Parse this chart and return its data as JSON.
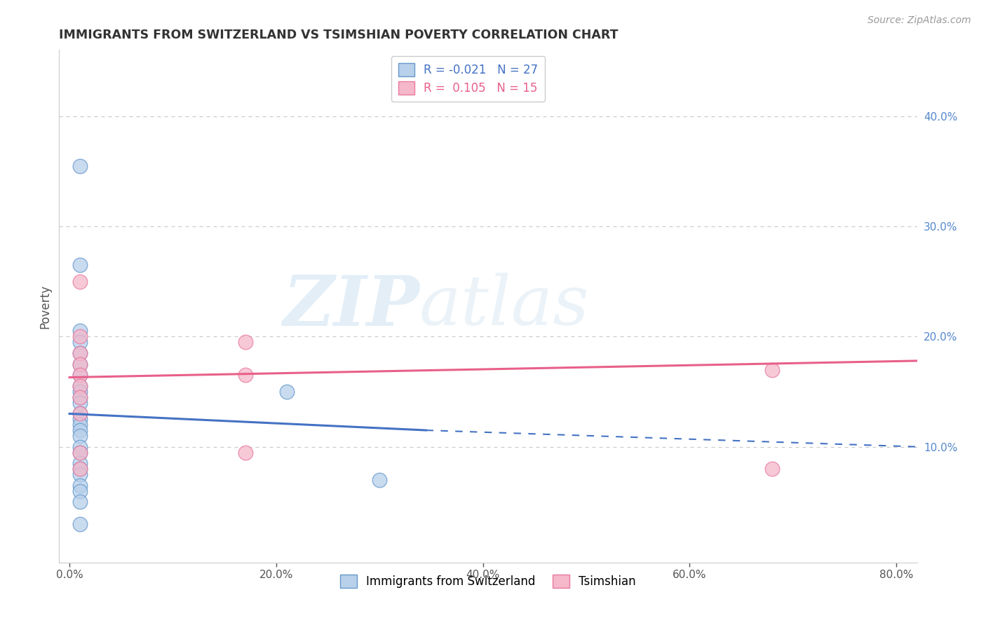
{
  "title": "IMMIGRANTS FROM SWITZERLAND VS TSIMSHIAN POVERTY CORRELATION CHART",
  "source": "Source: ZipAtlas.com",
  "ylabel": "Poverty",
  "watermark_zip": "ZIP",
  "watermark_atlas": "atlas",
  "x_ticks": [
    "0.0%",
    "20.0%",
    "40.0%",
    "60.0%",
    "80.0%"
  ],
  "x_tick_vals": [
    0.0,
    0.2,
    0.4,
    0.6,
    0.8
  ],
  "y_ticks_right": [
    "10.0%",
    "20.0%",
    "30.0%",
    "40.0%"
  ],
  "y_tick_right_vals": [
    0.1,
    0.2,
    0.3,
    0.4
  ],
  "xlim": [
    -0.01,
    0.82
  ],
  "ylim": [
    -0.005,
    0.46
  ],
  "legend_labels": [
    "Immigrants from Switzerland",
    "Tsimshian"
  ],
  "legend_R": [
    -0.021,
    0.105
  ],
  "legend_N": [
    27,
    15
  ],
  "blue_fill": "#b8d0ea",
  "pink_fill": "#f5b8ca",
  "blue_edge": "#6699cc",
  "pink_edge": "#e87aa0",
  "blue_trend_color": "#4472c4",
  "pink_trend_color": "#e8608a",
  "blue_scatter": [
    [
      0.01,
      0.355
    ],
    [
      0.01,
      0.265
    ],
    [
      0.01,
      0.205
    ],
    [
      0.01,
      0.195
    ],
    [
      0.01,
      0.185
    ],
    [
      0.01,
      0.175
    ],
    [
      0.01,
      0.165
    ],
    [
      0.01,
      0.155
    ],
    [
      0.01,
      0.15
    ],
    [
      0.01,
      0.145
    ],
    [
      0.01,
      0.14
    ],
    [
      0.01,
      0.13
    ],
    [
      0.01,
      0.125
    ],
    [
      0.01,
      0.12
    ],
    [
      0.01,
      0.115
    ],
    [
      0.01,
      0.11
    ],
    [
      0.01,
      0.1
    ],
    [
      0.01,
      0.095
    ],
    [
      0.01,
      0.085
    ],
    [
      0.01,
      0.08
    ],
    [
      0.01,
      0.075
    ],
    [
      0.01,
      0.065
    ],
    [
      0.01,
      0.06
    ],
    [
      0.01,
      0.05
    ],
    [
      0.01,
      0.03
    ],
    [
      0.21,
      0.15
    ],
    [
      0.3,
      0.07
    ]
  ],
  "pink_scatter": [
    [
      0.01,
      0.25
    ],
    [
      0.01,
      0.2
    ],
    [
      0.01,
      0.185
    ],
    [
      0.01,
      0.175
    ],
    [
      0.01,
      0.165
    ],
    [
      0.01,
      0.155
    ],
    [
      0.01,
      0.145
    ],
    [
      0.01,
      0.13
    ],
    [
      0.01,
      0.095
    ],
    [
      0.01,
      0.08
    ],
    [
      0.17,
      0.195
    ],
    [
      0.17,
      0.165
    ],
    [
      0.17,
      0.095
    ],
    [
      0.68,
      0.17
    ],
    [
      0.68,
      0.08
    ]
  ],
  "blue_solid_line": [
    [
      0.0,
      0.13
    ],
    [
      0.345,
      0.115
    ]
  ],
  "blue_dashed_line": [
    [
      0.345,
      0.115
    ],
    [
      0.82,
      0.1
    ]
  ],
  "pink_solid_line": [
    [
      0.0,
      0.163
    ],
    [
      0.82,
      0.178
    ]
  ],
  "grid_dashes": [
    4,
    4
  ],
  "grid_color": "#cccccc",
  "background_color": "#ffffff",
  "title_color": "#333333",
  "source_color": "#999999",
  "axis_label_color": "#555555",
  "right_tick_color": "#5588cc"
}
